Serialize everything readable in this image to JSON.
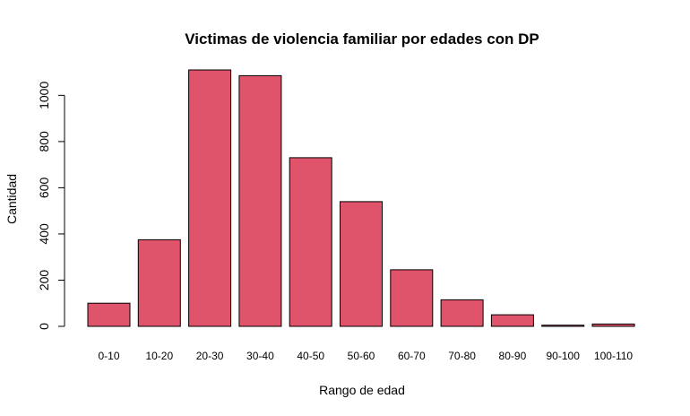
{
  "chart_data": {
    "type": "bar",
    "title": "Victimas de violencia familiar por edades con DP",
    "xlabel": "Rango de edad",
    "ylabel": "Cantidad",
    "categories": [
      "0-10",
      "10-20",
      "20-30",
      "30-40",
      "40-50",
      "50-60",
      "60-70",
      "70-80",
      "80-90",
      "90-100",
      "100-110"
    ],
    "values": [
      100,
      375,
      1110,
      1085,
      730,
      540,
      245,
      115,
      50,
      5,
      10
    ],
    "ylim": [
      0,
      1110
    ],
    "yticks": [
      0,
      200,
      400,
      600,
      800,
      1000
    ],
    "grid": false,
    "bar_color": "#DF536B",
    "bar_border": "#000000"
  }
}
